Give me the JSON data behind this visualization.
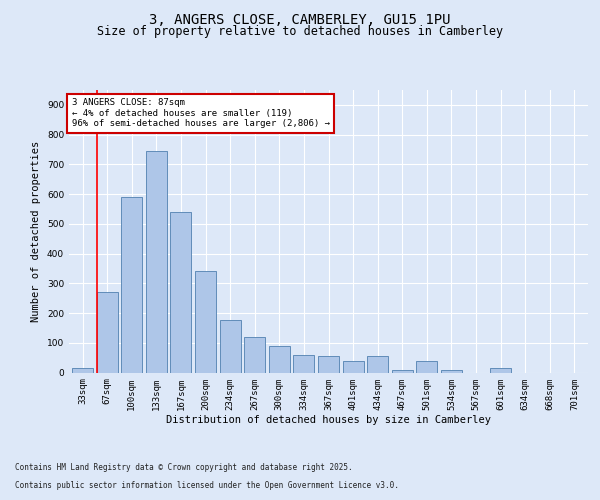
{
  "title1": "3, ANGERS CLOSE, CAMBERLEY, GU15 1PU",
  "title2": "Size of property relative to detached houses in Camberley",
  "xlabel": "Distribution of detached houses by size in Camberley",
  "ylabel": "Number of detached properties",
  "bar_labels": [
    "33sqm",
    "67sqm",
    "100sqm",
    "133sqm",
    "167sqm",
    "200sqm",
    "234sqm",
    "267sqm",
    "300sqm",
    "334sqm",
    "367sqm",
    "401sqm",
    "434sqm",
    "467sqm",
    "501sqm",
    "534sqm",
    "567sqm",
    "601sqm",
    "634sqm",
    "668sqm",
    "701sqm"
  ],
  "bar_values": [
    15,
    270,
    590,
    745,
    540,
    340,
    175,
    120,
    88,
    58,
    55,
    40,
    55,
    10,
    40,
    8,
    0,
    15,
    0,
    0,
    0
  ],
  "bar_color": "#aec6e8",
  "bar_edge_color": "#5080b0",
  "red_line_x": 1,
  "annotation_text": "3 ANGERS CLOSE: 87sqm\n← 4% of detached houses are smaller (119)\n96% of semi-detached houses are larger (2,806) →",
  "annotation_box_color": "#ffffff",
  "annotation_box_edge_color": "#cc0000",
  "ylim": [
    0,
    950
  ],
  "yticks": [
    0,
    100,
    200,
    300,
    400,
    500,
    600,
    700,
    800,
    900
  ],
  "background_color": "#dde8f8",
  "plot_bg_color": "#dde8f8",
  "footer1": "Contains HM Land Registry data © Crown copyright and database right 2025.",
  "footer2": "Contains public sector information licensed under the Open Government Licence v3.0.",
  "grid_color": "#ffffff",
  "title1_fontsize": 10,
  "title2_fontsize": 8.5,
  "tick_fontsize": 6.5,
  "label_fontsize": 7.5,
  "annotation_fontsize": 6.5,
  "footer_fontsize": 5.5
}
